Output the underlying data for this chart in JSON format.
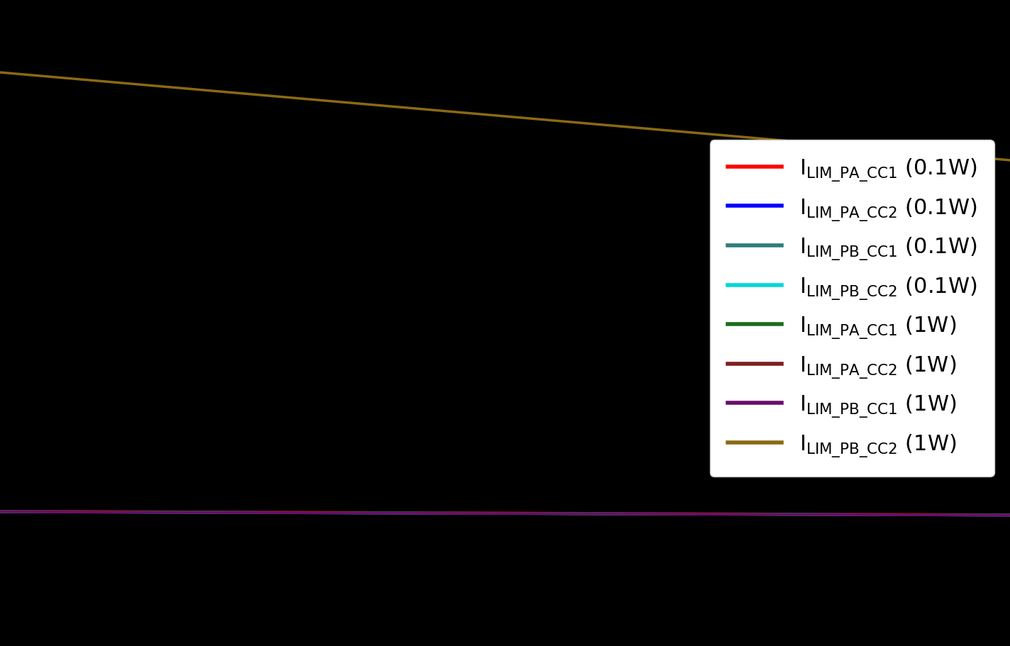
{
  "background_color": "#000000",
  "text_color": "#000000",
  "legend_bg": "#ffffff",
  "xlim": [
    -40,
    125
  ],
  "ylim": [
    0,
    2.5
  ],
  "series": [
    {
      "label_sub": "LIM_PA_CC1",
      "label_suffix": " (0.1W)",
      "color": "#ff0000",
      "x": [
        -40,
        125
      ],
      "y": [
        0.522,
        0.508
      ],
      "lw": 2.5
    },
    {
      "label_sub": "LIM_PA_CC2",
      "label_suffix": " (0.1W)",
      "color": "#0000ff",
      "x": [
        -40,
        125
      ],
      "y": [
        0.521,
        0.507
      ],
      "lw": 2.5
    },
    {
      "label_sub": "LIM_PB_CC1",
      "label_suffix": " (0.1W)",
      "color": "#2e7d7d",
      "x": [
        -40,
        125
      ],
      "y": [
        0.52,
        0.506
      ],
      "lw": 2.5
    },
    {
      "label_sub": "LIM_PB_CC2",
      "label_suffix": " (0.1W)",
      "color": "#00d8d8",
      "x": [
        -40,
        125
      ],
      "y": [
        0.519,
        0.506
      ],
      "lw": 2.5
    },
    {
      "label_sub": "LIM_PA_CC1",
      "label_suffix": " (1W)",
      "color": "#1e6b1e",
      "x": [
        -40,
        125
      ],
      "y": [
        0.521,
        0.507
      ],
      "lw": 2.5
    },
    {
      "label_sub": "LIM_PA_CC2",
      "label_suffix": " (1W)",
      "color": "#7d2020",
      "x": [
        -40,
        125
      ],
      "y": [
        0.52,
        0.506
      ],
      "lw": 2.5
    },
    {
      "label_sub": "LIM_PB_CC1",
      "label_suffix": " (1W)",
      "color": "#6a0d6a",
      "x": [
        -40,
        125
      ],
      "y": [
        0.519,
        0.506
      ],
      "lw": 2.5
    },
    {
      "label_sub": "LIM_PB_CC2",
      "label_suffix": " (1W)",
      "color": "#8b6914",
      "x": [
        -40,
        125
      ],
      "y": [
        2.22,
        1.88
      ],
      "lw": 2.5
    }
  ],
  "figsize": [
    14.24,
    9.11
  ],
  "dpi": 100,
  "legend_fontsize": 22,
  "legend_title_fontsize": 24
}
